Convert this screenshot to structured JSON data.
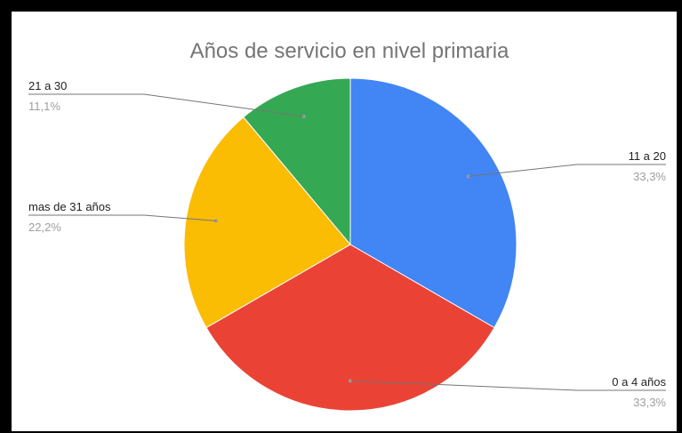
{
  "chart_data": {
    "type": "pie",
    "title": "Años de servicio en nivel primaria",
    "slices": [
      {
        "label": "11 a 20",
        "value": 33.3,
        "percent_label": "33,3%",
        "color": "#4285f4"
      },
      {
        "label": "0 a 4 años",
        "value": 33.3,
        "percent_label": "33,3%",
        "color": "#ea4335"
      },
      {
        "label": "mas de 31 años",
        "value": 22.2,
        "percent_label": "22,2%",
        "color": "#fbbc04"
      },
      {
        "label": "21 a 30",
        "value": 11.1,
        "percent_label": "11,1%",
        "color": "#34a853"
      }
    ],
    "start_angle": "12 o'clock",
    "direction": "clockwise",
    "legend": "none",
    "label_style": "leader lines with category and percentage"
  }
}
